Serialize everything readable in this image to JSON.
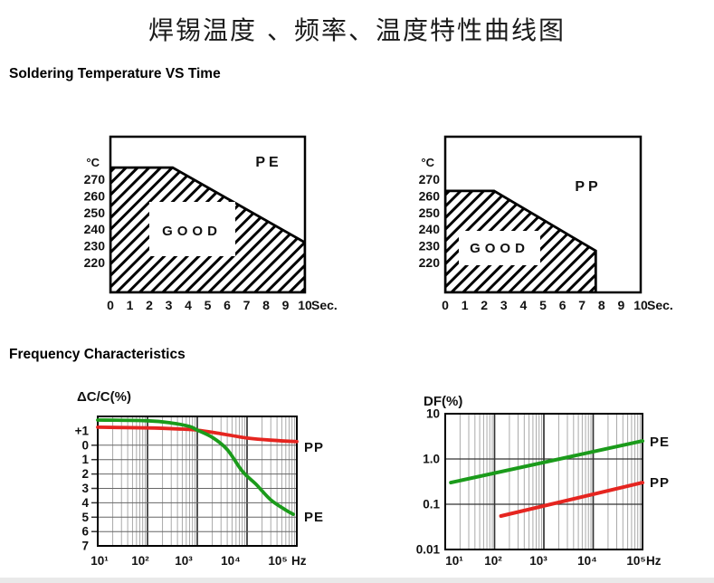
{
  "page": {
    "title_cn": "焊锡温度 、频率、温度特性曲线图"
  },
  "sections": {
    "soldering": {
      "heading": "Soldering Temperature VS Time"
    },
    "frequency": {
      "heading": "Frequency Characteristics"
    }
  },
  "colors": {
    "pe_green": "#1b9b1b",
    "pp_red": "#e52520",
    "axis_black": "#000000"
  },
  "chart_data": [
    {
      "id": "soldering-pe",
      "type": "area",
      "material": "PE",
      "region_label": "GOOD",
      "y_unit": "°C",
      "x_unit": "Sec.",
      "xlim": [
        0,
        10
      ],
      "x_ticks": [
        "0",
        "1",
        "2",
        "3",
        "4",
        "5",
        "6",
        "7",
        "8",
        "9",
        "10"
      ],
      "y_ticks": [
        "270",
        "260",
        "250",
        "240",
        "230",
        "220"
      ],
      "ylim": [
        202,
        295
      ],
      "boundary_points": [
        [
          0,
          277
        ],
        [
          3.2,
          277
        ],
        [
          10,
          232
        ]
      ],
      "note": "hatched GOOD soldering region lies below boundary line"
    },
    {
      "id": "soldering-pp",
      "type": "area",
      "material": "PP",
      "region_label": "GOOD",
      "y_unit": "°C",
      "x_unit": "Sec.",
      "xlim": [
        0,
        10
      ],
      "x_ticks": [
        "0",
        "1",
        "2",
        "3",
        "4",
        "5",
        "6",
        "7",
        "8",
        "9",
        "10"
      ],
      "y_ticks": [
        "270",
        "260",
        "250",
        "240",
        "230",
        "220"
      ],
      "ylim": [
        202,
        295
      ],
      "boundary_points": [
        [
          0,
          263
        ],
        [
          2.5,
          263
        ],
        [
          7.7,
          227
        ]
      ],
      "note": "hatched GOOD soldering region lies below boundary line, max 7.7 s"
    },
    {
      "id": "freq-dcc",
      "type": "line",
      "title": "ΔC/C(%)",
      "x_scale": "log",
      "x_unit": "Hz",
      "xlim": [
        10,
        100000
      ],
      "x_ticks": [
        "10¹",
        "10²",
        "10³",
        "10⁴",
        "10⁵"
      ],
      "ylim": [
        -7,
        2
      ],
      "y_tick_values": [
        1,
        0,
        -1,
        -2,
        -3,
        -4,
        -5,
        -6,
        -7
      ],
      "y_tick_labels": [
        "+1",
        "0",
        "1",
        "2",
        "3",
        "4",
        "5",
        "6",
        "7"
      ],
      "grid": "log-x with minor decades, linear-y",
      "legend_position": "right of plot",
      "series": [
        {
          "name": "PP",
          "color": "#e52520",
          "points": [
            [
              10,
              1.25
            ],
            [
              100,
              1.2
            ],
            [
              400,
              1.13
            ],
            [
              1000,
              1.05
            ],
            [
              3000,
              0.8
            ],
            [
              10000,
              0.5
            ],
            [
              30000,
              0.35
            ],
            [
              100000,
              0.25
            ]
          ]
        },
        {
          "name": "PE",
          "color": "#1b9b1b",
          "points": [
            [
              10,
              1.75
            ],
            [
              100,
              1.7
            ],
            [
              300,
              1.55
            ],
            [
              700,
              1.3
            ],
            [
              1000,
              1.05
            ],
            [
              2000,
              0.55
            ],
            [
              4000,
              -0.3
            ],
            [
              8000,
              -1.8
            ],
            [
              15000,
              -2.7
            ],
            [
              30000,
              -3.8
            ],
            [
              60000,
              -4.5
            ],
            [
              85000,
              -4.8
            ]
          ]
        }
      ]
    },
    {
      "id": "freq-df",
      "type": "line",
      "title": "DF(%)",
      "x_scale": "log",
      "y_scale": "log",
      "x_unit": "Hz",
      "xlim": [
        10,
        100000
      ],
      "x_ticks": [
        "10¹",
        "10²",
        "10³",
        "10⁴",
        "10⁵"
      ],
      "ylim": [
        0.01,
        10
      ],
      "y_tick_values": [
        10,
        1,
        0.1,
        0.01
      ],
      "y_tick_labels": [
        "10",
        "1.0",
        "0.1",
        "0.01"
      ],
      "grid": "log-log, horizontal lines at decades only",
      "legend_position": "right of plot",
      "series": [
        {
          "name": "PE",
          "color": "#1b9b1b",
          "points": [
            [
              13,
              0.3
            ],
            [
              100000,
              2.5
            ]
          ]
        },
        {
          "name": "PP",
          "color": "#e52520",
          "points": [
            [
              135,
              0.055
            ],
            [
              100000,
              0.3
            ]
          ]
        }
      ]
    }
  ]
}
